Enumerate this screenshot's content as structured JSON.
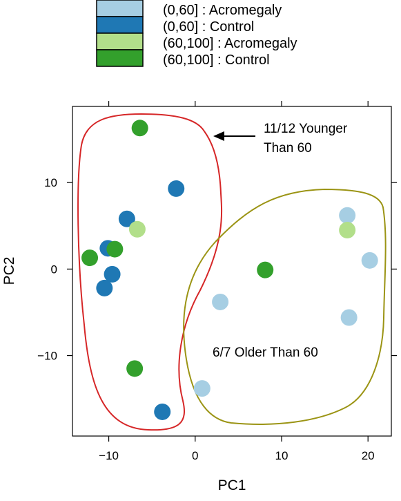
{
  "chart_data": {
    "type": "scatter",
    "xlabel": "PC1",
    "ylabel": "PC2",
    "xlim": [
      -14.2,
      22.7
    ],
    "ylim": [
      -19.3,
      18.8
    ],
    "x_ticks": [
      -10,
      0,
      10,
      20
    ],
    "y_ticks": [
      -10,
      0,
      10
    ],
    "x_tick_labels": [
      "−10",
      "0",
      "10",
      "20"
    ],
    "y_tick_labels": [
      "−10",
      "0",
      "10"
    ],
    "legend": [
      {
        "label": "(0,60] : Acromegaly",
        "color": "#a6cee3"
      },
      {
        "label": "(0,60] : Control",
        "color": "#1f78b4"
      },
      {
        "label": "(60,100] : Acromegaly",
        "color": "#b2df8a"
      },
      {
        "label": "(60,100] : Control",
        "color": "#33a02c"
      }
    ],
    "series": [
      {
        "name": "(0,60] : Acromegaly",
        "color": "#a6cee3",
        "points": [
          [
            17.6,
            6.2
          ],
          [
            20.2,
            1.0
          ],
          [
            2.9,
            -3.8
          ],
          [
            17.8,
            -5.6
          ],
          [
            0.8,
            -13.8
          ]
        ]
      },
      {
        "name": "(0,60] : Control",
        "color": "#1f78b4",
        "points": [
          [
            -2.2,
            9.3
          ],
          [
            -7.9,
            5.8
          ],
          [
            -10.1,
            2.4
          ],
          [
            -9.6,
            -0.6
          ],
          [
            -10.5,
            -2.2
          ],
          [
            -3.8,
            -16.5
          ]
        ]
      },
      {
        "name": "(60,100] : Acromegaly",
        "color": "#b2df8a",
        "points": [
          [
            -6.7,
            4.6
          ],
          [
            17.6,
            4.5
          ]
        ]
      },
      {
        "name": "(60,100] : Control",
        "color": "#33a02c",
        "points": [
          [
            -6.4,
            16.3
          ],
          [
            -9.3,
            2.3
          ],
          [
            -12.2,
            1.3
          ],
          [
            8.1,
            -0.1
          ],
          [
            -7.0,
            -11.5
          ]
        ]
      }
    ],
    "annotations": {
      "younger_line1": "11/12 Younger",
      "younger_line2": "Than 60",
      "older": "6/7 Older Than 60"
    },
    "outline_colors": {
      "younger": "#d62728",
      "older": "#9b9414"
    }
  }
}
